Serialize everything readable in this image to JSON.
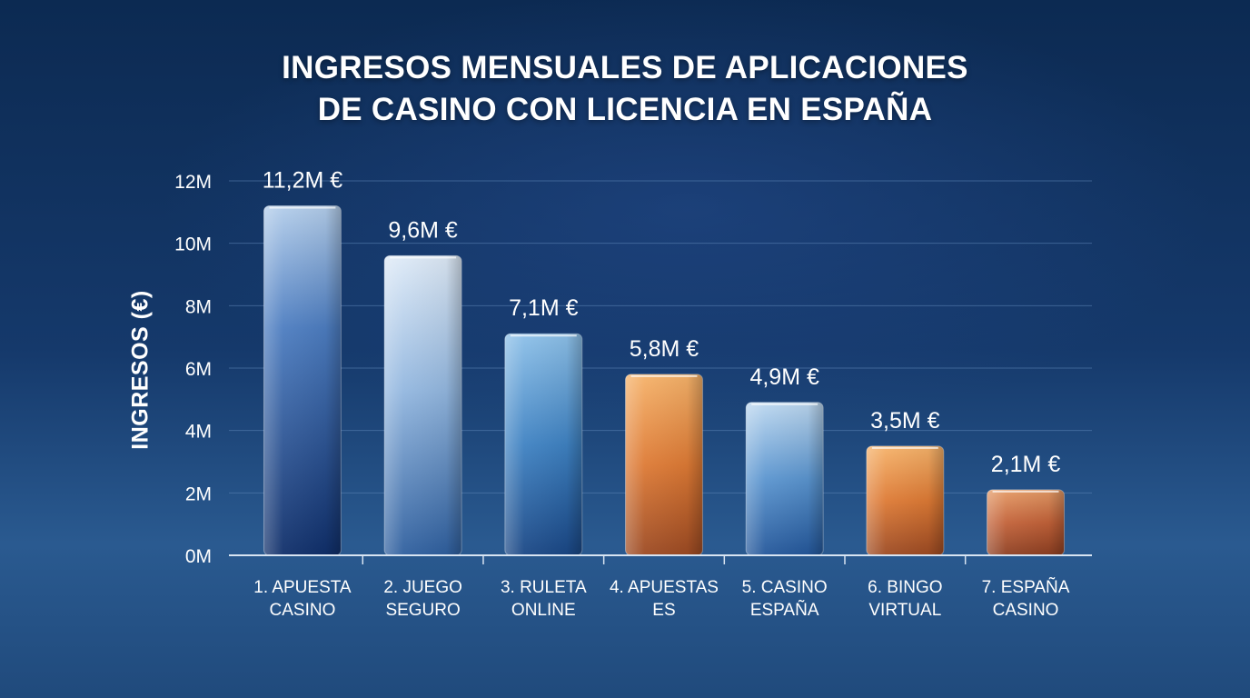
{
  "chart_data": {
    "type": "bar",
    "title": [
      "INGRESOS MENSUALES DE APLICACIONES",
      "DE CASINO CON LICENCIA EN ESPAÑA"
    ],
    "ylabel": "INGRESOS (€)",
    "xlabel": "",
    "ylim": [
      0,
      12
    ],
    "yticks": [
      0,
      2,
      4,
      6,
      8,
      10,
      12
    ],
    "ytick_labels": [
      "0M",
      "2M",
      "4M",
      "6M",
      "8M",
      "10M",
      "12M"
    ],
    "grid": true,
    "categories": [
      [
        "1. APUESTA",
        "CASINO"
      ],
      [
        "2. JUEGO",
        "SEGURO"
      ],
      [
        "3. RULETA",
        "ONLINE"
      ],
      [
        "4. APUESTAS",
        "ES"
      ],
      [
        "5. CASINO",
        "ESPAÑA"
      ],
      [
        "6. BINGO",
        "VIRTUAL"
      ],
      [
        "7. ESPAÑA",
        "CASINO"
      ]
    ],
    "values": [
      11.2,
      9.6,
      7.1,
      5.8,
      4.9,
      3.5,
      2.1
    ],
    "value_labels": [
      "11,2M €",
      "9,6M €",
      "7,1M €",
      "5,8M €",
      "4,9M €",
      "3,5M €",
      "2,1M €"
    ],
    "bar_colors": [
      "#1f4c95",
      "#6ea0d6",
      "#3a78b8",
      "#e07b38",
      "#4c8ac8",
      "#e08a3c",
      "#c0603a"
    ],
    "bar_styles": [
      "dark-blue",
      "light-blue",
      "mid-blue",
      "orange",
      "sky-blue",
      "orange",
      "rust"
    ]
  }
}
